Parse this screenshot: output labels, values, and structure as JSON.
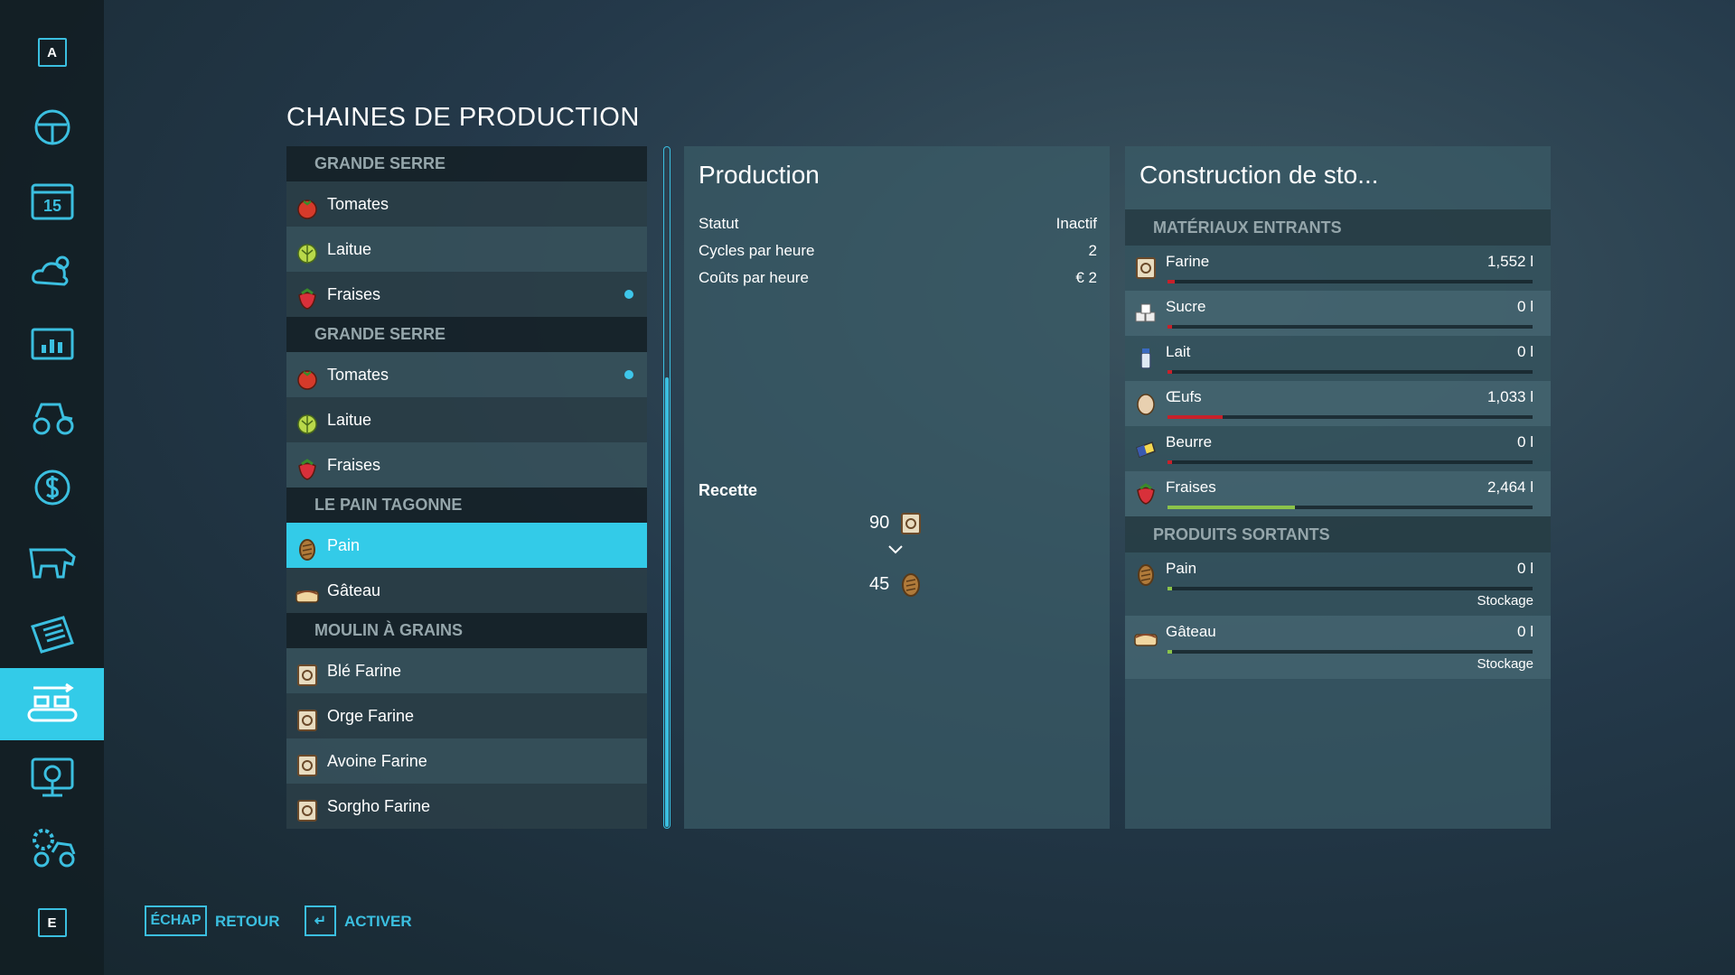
{
  "sidebar": {
    "top_key": "A",
    "calendar_day": "15",
    "bottom_key": "E"
  },
  "title": "CHAINES DE PRODUCTION",
  "productions": [
    {
      "name": "GRANDE SERRE",
      "items": [
        {
          "name": "Tomates"
        },
        {
          "name": "Laitue"
        },
        {
          "name": "Fraises",
          "active": true
        }
      ]
    },
    {
      "name": "GRANDE SERRE",
      "items": [
        {
          "name": "Tomates",
          "active": true
        },
        {
          "name": "Laitue"
        },
        {
          "name": "Fraises"
        }
      ]
    },
    {
      "name": "LE PAIN TAGONNE",
      "items": [
        {
          "name": "Pain",
          "selected": true
        },
        {
          "name": "Gâteau"
        }
      ]
    },
    {
      "name": "MOULIN À GRAINS",
      "items": [
        {
          "name": "Blé Farine"
        },
        {
          "name": "Orge Farine"
        },
        {
          "name": "Avoine Farine"
        },
        {
          "name": "Sorgho Farine"
        }
      ]
    }
  ],
  "production_panel": {
    "title": "Production",
    "rows": [
      {
        "label": "Statut",
        "value": "Inactif"
      },
      {
        "label": "Cycles par heure",
        "value": "2"
      },
      {
        "label": "Coûts par heure",
        "value": "€ 2"
      }
    ],
    "recipe_label": "Recette",
    "recipe": {
      "input_amount": 90,
      "output_amount": 45
    }
  },
  "storage_panel": {
    "title": "Construction de sto...",
    "inputs_header": "MATÉRIAUX ENTRANTS",
    "inputs": [
      {
        "name": "Farine",
        "amount": "1,552 l",
        "fill": 2,
        "color": "#c8202a"
      },
      {
        "name": "Sucre",
        "amount": "0 l",
        "fill": 0,
        "color": "#c8202a"
      },
      {
        "name": "Lait",
        "amount": "0 l",
        "fill": 0,
        "color": "#c8202a"
      },
      {
        "name": "Œufs",
        "amount": "1,033 l",
        "fill": 15,
        "color": "#c8202a"
      },
      {
        "name": "Beurre",
        "amount": "0 l",
        "fill": 0,
        "color": "#c8202a"
      },
      {
        "name": "Fraises",
        "amount": "2,464 l",
        "fill": 35,
        "color": "#8bc34a"
      }
    ],
    "outputs_header": "PRODUITS SORTANTS",
    "outputs": [
      {
        "name": "Pain",
        "amount": "0 l",
        "fill": 0,
        "color": "#8bc34a",
        "mode": "Stockage"
      },
      {
        "name": "Gâteau",
        "amount": "0 l",
        "fill": 0,
        "color": "#8bc34a",
        "mode": "Stockage"
      }
    ]
  },
  "footer": [
    {
      "key": "ÉCHAP",
      "label": "RETOUR"
    },
    {
      "key": "↵",
      "label": "ACTIVER"
    }
  ]
}
